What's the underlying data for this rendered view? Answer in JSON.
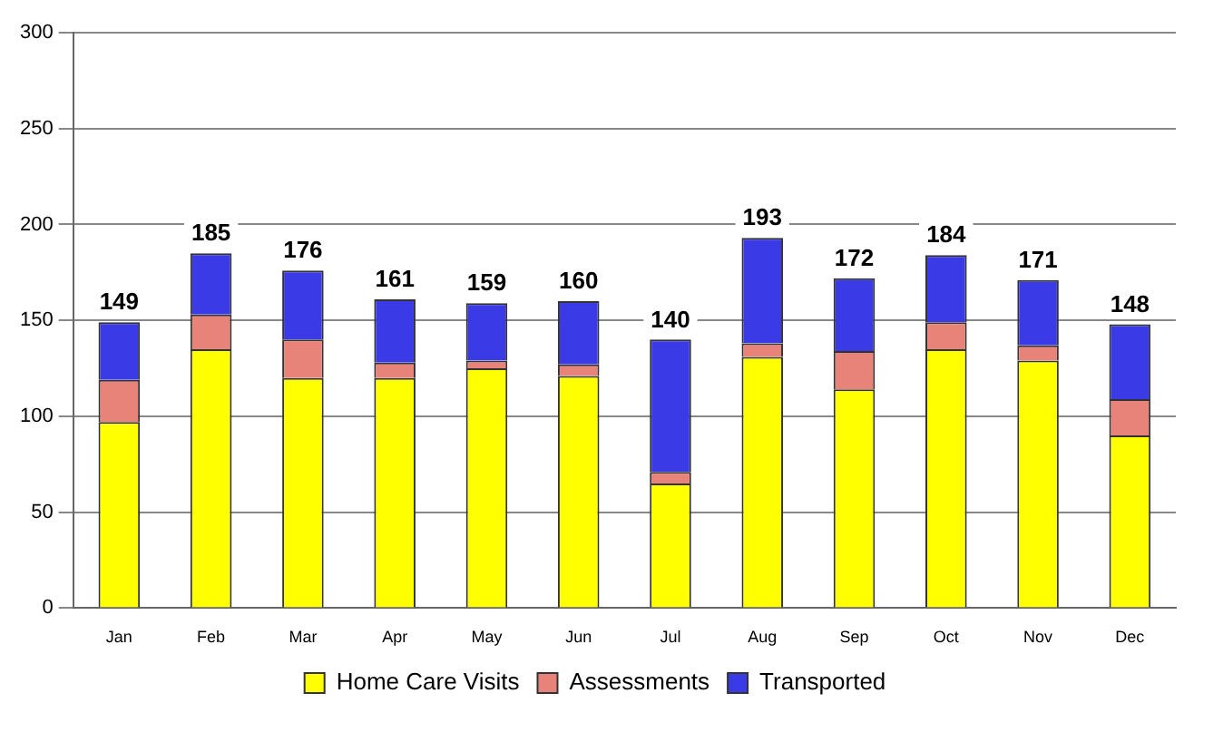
{
  "chart_data": {
    "type": "bar",
    "stacked": true,
    "categories": [
      "Jan",
      "Feb",
      "Mar",
      "Apr",
      "May",
      "Jun",
      "Jul",
      "Aug",
      "Sep",
      "Oct",
      "Nov",
      "Dec"
    ],
    "series": [
      {
        "name": "Home Care Visits",
        "color": "#ffff00",
        "values": [
          97,
          135,
          120,
          120,
          125,
          121,
          65,
          131,
          114,
          135,
          129,
          90
        ]
      },
      {
        "name": "Assessments",
        "color": "#e8837a",
        "values": [
          22,
          18,
          20,
          8,
          4,
          6,
          6,
          7,
          20,
          14,
          8,
          19
        ]
      },
      {
        "name": "Transported",
        "color": "#3a3ae6",
        "values": [
          30,
          32,
          36,
          33,
          30,
          33,
          69,
          55,
          38,
          35,
          34,
          39
        ]
      }
    ],
    "totals": [
      "149",
      "185",
      "176",
      "161",
      "159",
      "160",
      "140",
      "193",
      "172",
      "184",
      "171",
      "148"
    ],
    "ylim": [
      0,
      300
    ],
    "yticks": [
      0,
      50,
      100,
      150,
      200,
      250,
      300
    ],
    "grid": "y",
    "legend": "bottom"
  }
}
